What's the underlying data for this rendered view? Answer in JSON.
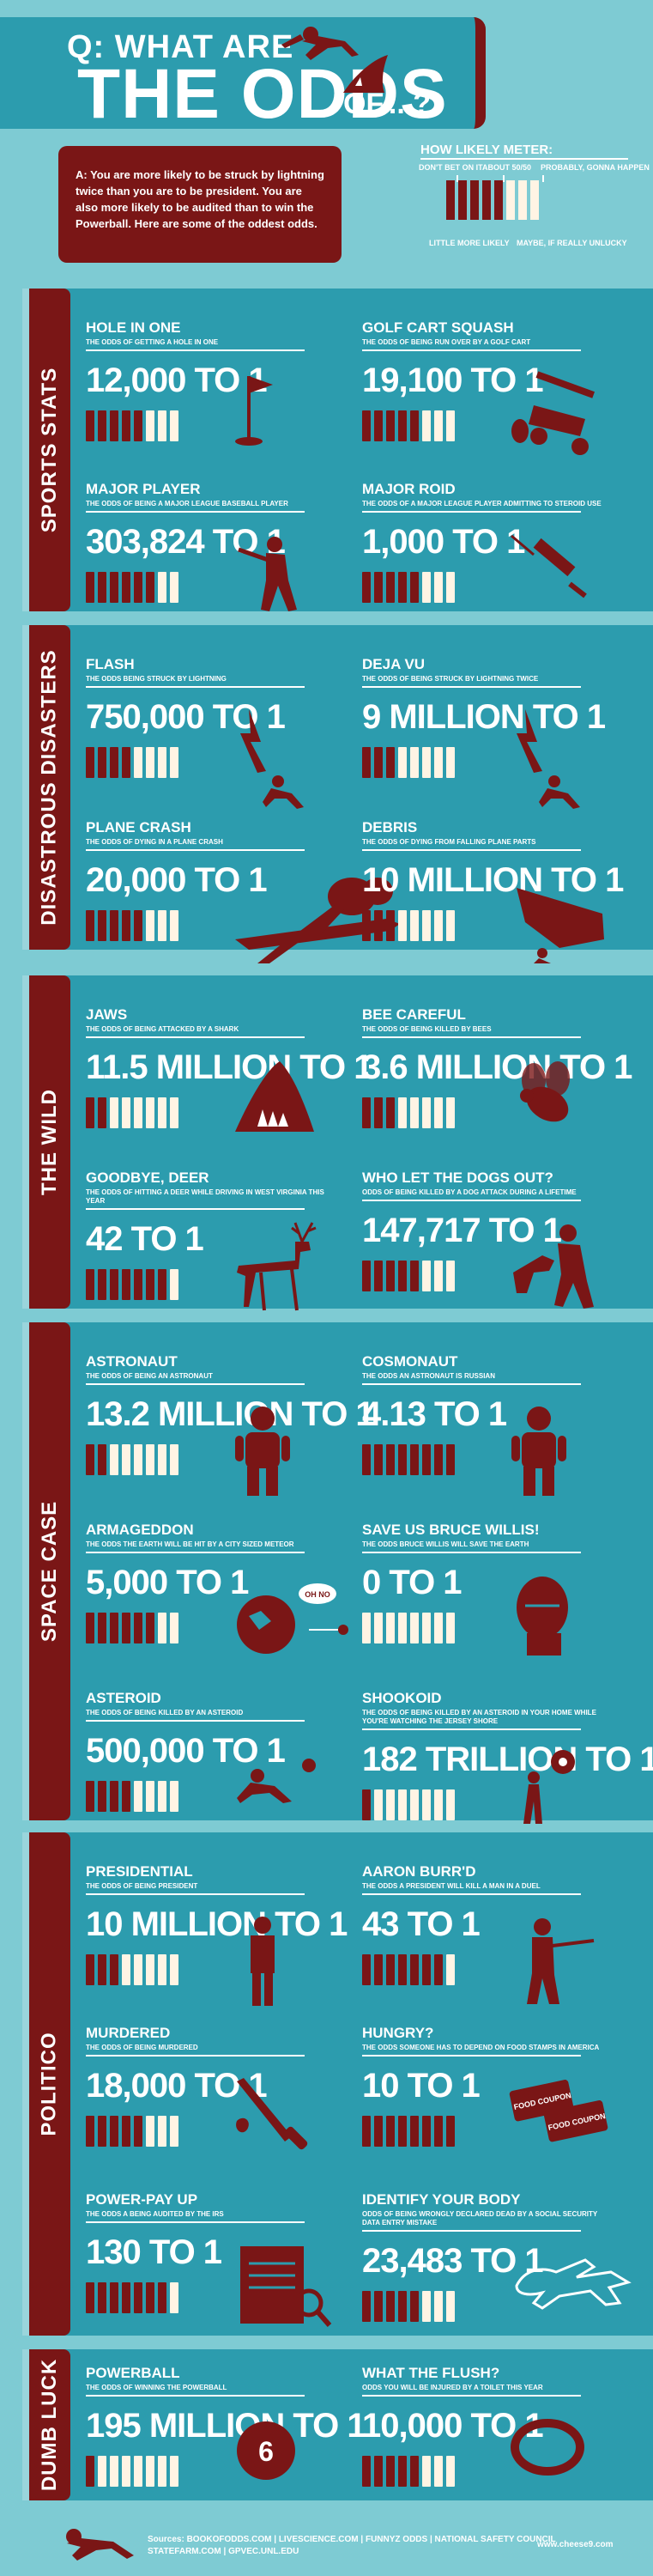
{
  "header": {
    "q": "Q: WHAT ARE",
    "odds": "THE ODDS",
    "of": "OF... ?",
    "intro": "A: You are more likely to be struck by lightning twice than you are to be president. You are also more likely to be audited than to win the Powerball. Here are some of the oddest odds."
  },
  "legend": {
    "title": "HOW LIKELY METER:",
    "labels": [
      "DON'T BET ON IT",
      "ABOUT 50/50",
      "PROBABLY, GONNA HAPPEN",
      "LITTLE MORE LIKELY",
      "MAYBE, IF REALLY UNLUCKY"
    ]
  },
  "sections": [
    {
      "name": "SPORTS STATS",
      "items": [
        {
          "title": "HOLE IN ONE",
          "sub": "THE ODDS OF GETTING A HOLE IN ONE",
          "odds": "12,000 TO 1",
          "filled": 5,
          "icon": "golf-flag-icon"
        },
        {
          "title": "GOLF CART SQUASH",
          "sub": "THE ODDS OF BEING RUN OVER BY A GOLF CART",
          "odds": "19,100 TO 1",
          "filled": 5,
          "icon": "golf-cart-icon"
        },
        {
          "title": "MAJOR PLAYER",
          "sub": "THE ODDS OF BEING A MAJOR LEAGUE BASEBALL PLAYER",
          "odds": "303,824 TO 1",
          "filled": 6,
          "icon": "baseball-player-icon"
        },
        {
          "title": "MAJOR ROID",
          "sub": "THE ODDS OF A MAJOR LEAGUE PLAYER ADMITTING TO STEROID USE",
          "odds": "1,000 TO 1",
          "filled": 5,
          "icon": "syringe-icon"
        }
      ]
    },
    {
      "name": "DISASTROUS DISASTERS",
      "items": [
        {
          "title": "FLASH",
          "sub": "THE ODDS BEING STRUCK BY LIGHTNING",
          "odds": "750,000 TO 1",
          "filled": 4,
          "icon": "lightning-person-icon"
        },
        {
          "title": "DEJA VU",
          "sub": "THE ODDS OF BEING STRUCK BY LIGHTNING TWICE",
          "odds": "9 MILLION TO 1",
          "filled": 3,
          "icon": "lightning-twice-icon"
        },
        {
          "title": "PLANE CRASH",
          "sub": "THE ODDS OF DYING IN A PLANE CRASH",
          "odds": "20,000 TO 1",
          "filled": 5,
          "icon": "plane-crash-icon"
        },
        {
          "title": "DEBRIS",
          "sub": "THE ODDS OF DYING FROM FALLING PLANE PARTS",
          "odds": "10 MILLION TO 1",
          "filled": 3,
          "icon": "debris-icon"
        }
      ]
    },
    {
      "name": "THE WILD",
      "items": [
        {
          "title": "JAWS",
          "sub": "THE ODDS OF BEING ATTACKED BY A SHARK",
          "odds": "11.5 MILLION TO 1",
          "filled": 2,
          "icon": "shark-icon"
        },
        {
          "title": "BEE CAREFUL",
          "sub": "THE ODDS OF BEING KILLED BY BEES",
          "odds": "3.6 MILLION TO 1",
          "filled": 3,
          "icon": "bee-icon"
        },
        {
          "title": "GOODBYE, DEER",
          "sub": "THE ODDS OF HITTING A DEER WHILE DRIVING IN WEST VIRGINIA THIS YEAR",
          "odds": "42 TO 1",
          "filled": 7,
          "icon": "deer-icon"
        },
        {
          "title": "WHO LET THE DOGS OUT?",
          "sub": "ODDS OF BEING KILLED BY A DOG ATTACK DURING A LIFETIME",
          "odds": "147,717 TO 1",
          "filled": 5,
          "icon": "dog-attack-icon"
        }
      ]
    },
    {
      "name": "SPACE CASE",
      "items": [
        {
          "title": "ASTRONAUT",
          "sub": "THE ODDS OF BEING AN ASTRONAUT",
          "odds": "13.2 MILLION TO 1",
          "filled": 2,
          "icon": "astronaut-icon"
        },
        {
          "title": "COSMONAUT",
          "sub": "THE ODDS AN ASTRONAUT IS RUSSIAN",
          "odds": "4.13 TO 1",
          "filled": 8,
          "icon": "cosmonaut-icon"
        },
        {
          "title": "ARMAGEDDON",
          "sub": "THE ODDS THE EARTH WILL BE HIT BY A CITY SIZED METEOR",
          "odds": "5,000 TO 1",
          "filled": 6,
          "icon": "meteor-earth-icon",
          "bubble": "OH NO"
        },
        {
          "title": "SAVE US BRUCE WILLIS!",
          "sub": "THE ODDS BRUCE WILLIS WILL SAVE THE EARTH",
          "odds": "0 TO 1",
          "filled": 0,
          "icon": "bruce-willis-icon"
        },
        {
          "title": "ASTEROID",
          "sub": "THE ODDS OF BEING KILLED BY AN ASTEROID",
          "odds": "500,000 TO 1",
          "filled": 4,
          "icon": "asteroid-icon"
        },
        {
          "title": "SHOOKOID",
          "sub": "THE ODDS OF BEING KILLED BY AN ASTEROID IN YOUR HOME WHILE YOU'RE WATCHING THE JERSEY SHORE",
          "odds": "182 TRILLION TO 1",
          "filled": 1,
          "icon": "shookoid-icon"
        }
      ]
    },
    {
      "name": "POLITICO",
      "items": [
        {
          "title": "PRESIDENTIAL",
          "sub": "THE ODDS OF BEING PRESIDENT",
          "odds": "10 MILLION TO 1",
          "filled": 3,
          "icon": "president-icon"
        },
        {
          "title": "AARON BURR'D",
          "sub": "THE ODDS A PRESIDENT WILL KILL A MAN IN A DUEL",
          "odds": "43 TO 1",
          "filled": 7,
          "icon": "duel-icon"
        },
        {
          "title": "MURDERED",
          "sub": "THE ODDS OF BEING MURDERED",
          "odds": "18,000 TO 1",
          "filled": 5,
          "icon": "knife-icon"
        },
        {
          "title": "HUNGRY?",
          "sub": "THE ODDS SOMEONE HAS TO DEPEND ON FOOD STAMPS IN AMERICA",
          "odds": "10 TO 1",
          "filled": 8,
          "icon": "food-stamps-icon",
          "stamp": "FOOD COUPON"
        },
        {
          "title": "POWER-PAY UP",
          "sub": "THE ODDS A BEING AUDITED BY THE IRS",
          "odds": "130 TO 1",
          "filled": 7,
          "icon": "audit-icon"
        },
        {
          "title": "IDENTIFY YOUR BODY",
          "sub": "ODDS OF BEING WRONGLY DECLARED DEAD BY A SOCIAL SECURITY DATA ENTRY MISTAKE",
          "odds": "23,483 TO 1",
          "filled": 5,
          "icon": "chalk-outline-icon"
        }
      ]
    },
    {
      "name": "DUMB LUCK",
      "items": [
        {
          "title": "POWERBALL",
          "sub": "THE ODDS OF WINNING THE POWERBALL",
          "odds": "195 MILLION TO 1",
          "filled": 1,
          "icon": "powerball-icon",
          "ball": "6"
        },
        {
          "title": "WHAT THE FLUSH?",
          "sub": "ODDS YOU WILL BE INJURED BY A TOILET THIS YEAR",
          "odds": "10,000 TO 1",
          "filled": 5,
          "icon": "toilet-icon"
        }
      ]
    }
  ],
  "footer": {
    "sources_label": "Sources:",
    "sources": "BOOKOFODDS.COM  |  LIVESCIENCE.COM  |  FUNNYZ ODDS  |  NATIONAL SAFETY COUNCIL",
    "sources2": "STATEFARM.COM  |  GPVEC.UNL.EDU",
    "site": "www.cheese9.com"
  },
  "colors": {
    "maroon": "#7a1616",
    "teal": "#2c9cae",
    "light": "#7ecbd3",
    "cream": "#fff4e4"
  }
}
